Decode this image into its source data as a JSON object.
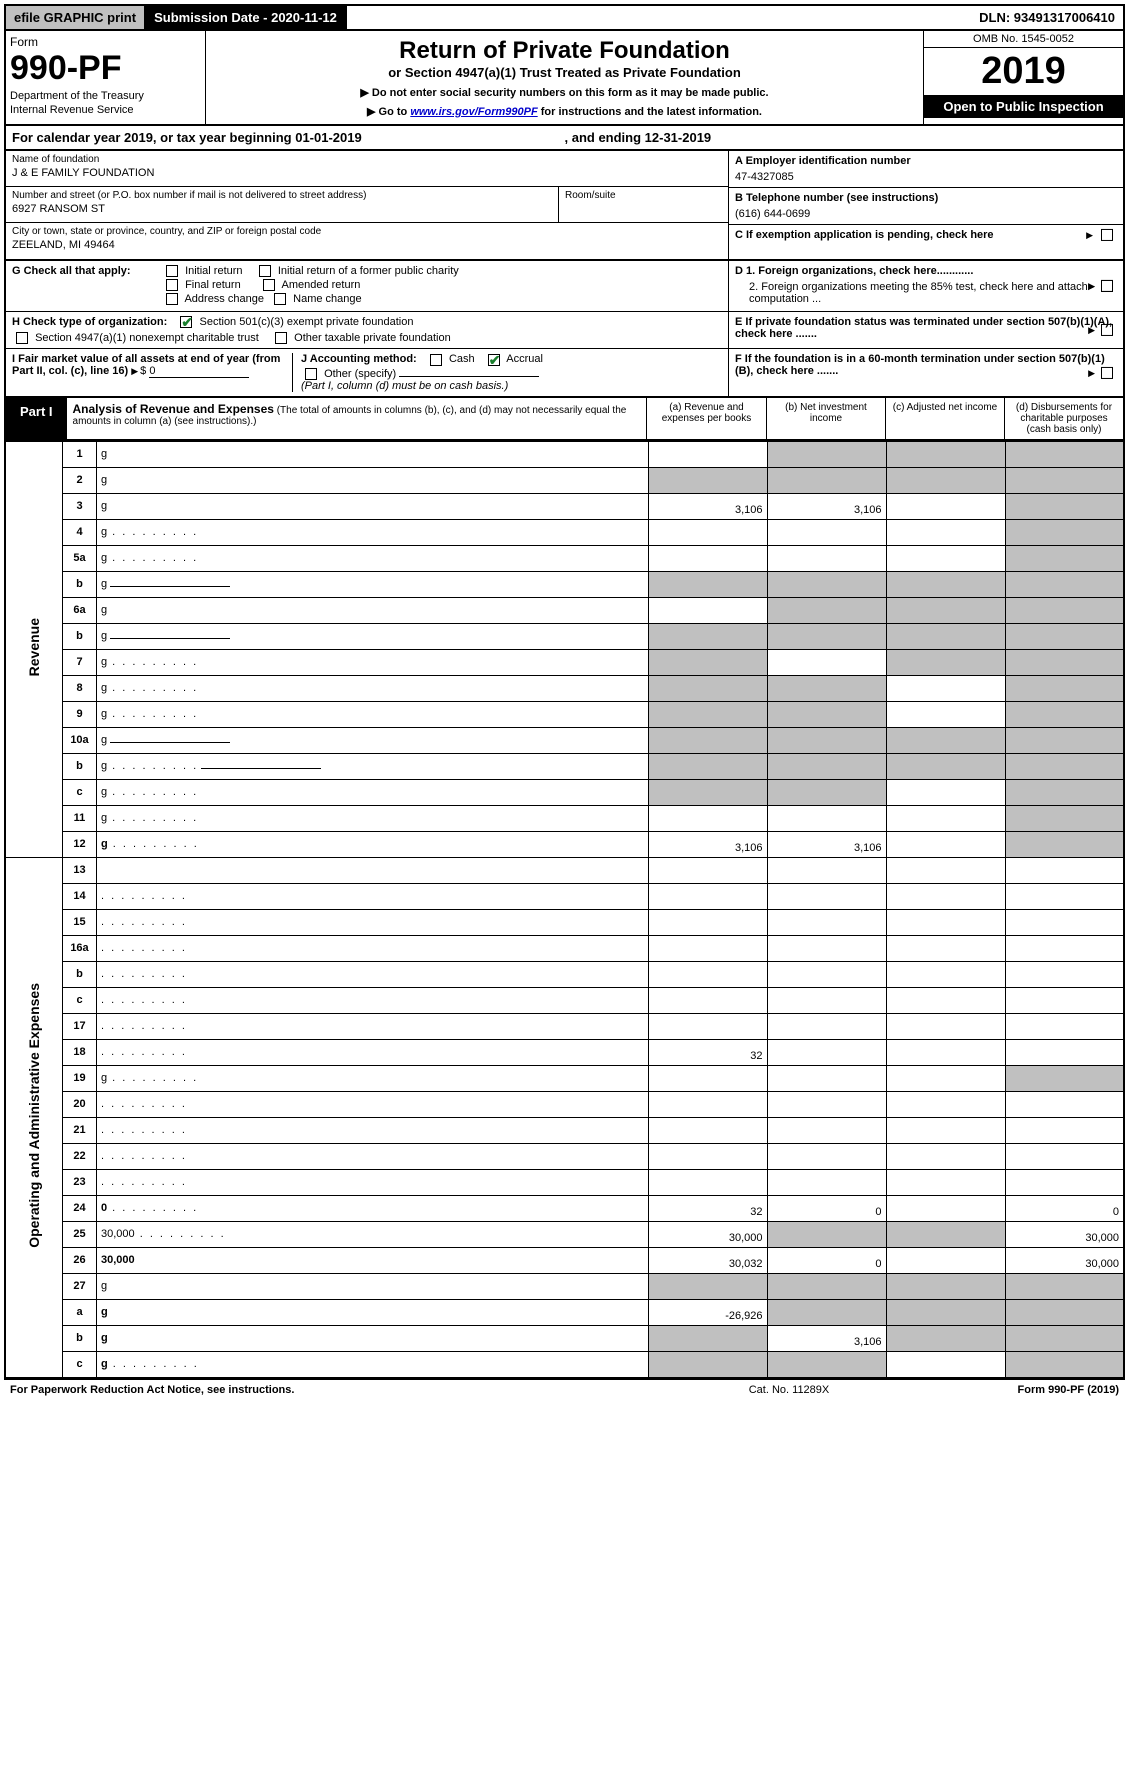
{
  "colors": {
    "accent": "#1a7f2e",
    "grey": "#c0c0c0",
    "link": "#0000cc"
  },
  "topbar": {
    "efile": "efile GRAPHIC print",
    "submission_label": "Submission Date - 2020-11-12",
    "dln": "DLN: 93491317006410"
  },
  "header": {
    "form_word": "Form",
    "form_num": "990-PF",
    "dept1": "Department of the Treasury",
    "dept2": "Internal Revenue Service",
    "title": "Return of Private Foundation",
    "subtitle": "or Section 4947(a)(1) Trust Treated as Private Foundation",
    "note1": "▶ Do not enter social security numbers on this form as it may be made public.",
    "note2_pre": "▶ Go to ",
    "note2_link": "www.irs.gov/Form990PF",
    "note2_post": " for instructions and the latest information.",
    "omb": "OMB No. 1545-0052",
    "year": "2019",
    "open": "Open to Public Inspection"
  },
  "calyr": {
    "text1": "For calendar year 2019, or tax year beginning 01-01-2019",
    "text2": ", and ending 12-31-2019"
  },
  "entity": {
    "name_lbl": "Name of foundation",
    "name_val": "J & E FAMILY FOUNDATION",
    "addr_lbl": "Number and street (or P.O. box number if mail is not delivered to street address)",
    "addr_val": "6927 RANSOM ST",
    "room_lbl": "Room/suite",
    "city_lbl": "City or town, state or province, country, and ZIP or foreign postal code",
    "city_val": "ZEELAND, MI  49464",
    "ein_lbl": "A Employer identification number",
    "ein_val": "47-4327085",
    "tel_lbl": "B Telephone number (see instructions)",
    "tel_val": "(616) 644-0699",
    "c_lbl": "C If exemption application is pending, check here",
    "d1_lbl": "D 1. Foreign organizations, check here............",
    "d2_lbl": "2. Foreign organizations meeting the 85% test, check here and attach computation ...",
    "e_lbl": "E  If private foundation status was terminated under section 507(b)(1)(A), check here .......",
    "f_lbl": "F  If the foundation is in a 60-month termination under section 507(b)(1)(B), check here .......",
    "g_lbl": "G Check all that apply:",
    "g_opts": {
      "initial": "Initial return",
      "initial_former": "Initial return of a former public charity",
      "final": "Final return",
      "amended": "Amended return",
      "address": "Address change",
      "name": "Name change"
    },
    "h_lbl": "H Check type of organization:",
    "h_501": "Section 501(c)(3) exempt private foundation",
    "h_4947": "Section 4947(a)(1) nonexempt charitable trust",
    "h_other": "Other taxable private foundation",
    "i_lbl": "I Fair market value of all assets at end of year (from Part II, col. (c), line 16)",
    "i_val": "0",
    "j_lbl": "J Accounting method:",
    "j_cash": "Cash",
    "j_accrual": "Accrual",
    "j_other": "Other (specify)",
    "j_note": "(Part I, column (d) must be on cash basis.)"
  },
  "part1": {
    "badge": "Part I",
    "title_main": "Analysis of Revenue and Expenses",
    "title_note": " (The total of amounts in columns (b), (c), and (d) may not necessarily equal the amounts in column (a) (see instructions).)",
    "col_a": "(a)   Revenue and expenses per books",
    "col_b": "(b)   Net investment income",
    "col_c": "(c)   Adjusted net income",
    "col_d": "(d)   Disbursements for charitable purposes (cash basis only)",
    "side_rev": "Revenue",
    "side_exp": "Operating and Administrative Expenses",
    "rows": [
      {
        "n": "1",
        "d": "g",
        "a": "",
        "b": "g",
        "c": "g"
      },
      {
        "n": "2",
        "d": "g",
        "a": "g",
        "b": "g",
        "c": "g",
        "dot": false
      },
      {
        "n": "3",
        "d": "g",
        "a": "3,106",
        "b": "3,106",
        "c": ""
      },
      {
        "n": "4",
        "d": "g",
        "a": "",
        "b": "",
        "c": "",
        "dot": true
      },
      {
        "n": "5a",
        "d": "g",
        "a": "",
        "b": "",
        "c": "",
        "dot": true
      },
      {
        "n": "b",
        "d": "g",
        "a": "g",
        "b": "g",
        "c": "g",
        "ul": true
      },
      {
        "n": "6a",
        "d": "g",
        "a": "",
        "b": "g",
        "c": "g"
      },
      {
        "n": "b",
        "d": "g",
        "a": "g",
        "b": "g",
        "c": "g",
        "ul": true
      },
      {
        "n": "7",
        "d": "g",
        "a": "g",
        "b": "",
        "c": "g",
        "dot": true
      },
      {
        "n": "8",
        "d": "g",
        "a": "g",
        "b": "g",
        "c": "",
        "dot": true
      },
      {
        "n": "9",
        "d": "g",
        "a": "g",
        "b": "g",
        "c": "",
        "dot": true
      },
      {
        "n": "10a",
        "d": "g",
        "a": "g",
        "b": "g",
        "c": "g",
        "ul": true
      },
      {
        "n": "b",
        "d": "g",
        "a": "g",
        "b": "g",
        "c": "g",
        "dot": true,
        "ul": true
      },
      {
        "n": "c",
        "d": "g",
        "a": "g",
        "b": "g",
        "c": "",
        "dot": true
      },
      {
        "n": "11",
        "d": "g",
        "a": "",
        "b": "",
        "c": "",
        "dot": true
      },
      {
        "n": "12",
        "d": "g",
        "a": "3,106",
        "b": "3,106",
        "c": "",
        "dot": true,
        "bold": true
      },
      {
        "n": "13",
        "d": "",
        "a": "",
        "b": "",
        "c": ""
      },
      {
        "n": "14",
        "d": "",
        "a": "",
        "b": "",
        "c": "",
        "dot": true
      },
      {
        "n": "15",
        "d": "",
        "a": "",
        "b": "",
        "c": "",
        "dot": true
      },
      {
        "n": "16a",
        "d": "",
        "a": "",
        "b": "",
        "c": "",
        "dot": true
      },
      {
        "n": "b",
        "d": "",
        "a": "",
        "b": "",
        "c": "",
        "dot": true
      },
      {
        "n": "c",
        "d": "",
        "a": "",
        "b": "",
        "c": "",
        "dot": true
      },
      {
        "n": "17",
        "d": "",
        "a": "",
        "b": "",
        "c": "",
        "dot": true
      },
      {
        "n": "18",
        "d": "",
        "a": "32",
        "b": "",
        "c": "",
        "dot": true
      },
      {
        "n": "19",
        "d": "g",
        "a": "",
        "b": "",
        "c": "",
        "dot": true
      },
      {
        "n": "20",
        "d": "",
        "a": "",
        "b": "",
        "c": "",
        "dot": true
      },
      {
        "n": "21",
        "d": "",
        "a": "",
        "b": "",
        "c": "",
        "dot": true
      },
      {
        "n": "22",
        "d": "",
        "a": "",
        "b": "",
        "c": "",
        "dot": true
      },
      {
        "n": "23",
        "d": "",
        "a": "",
        "b": "",
        "c": "",
        "dot": true
      },
      {
        "n": "24",
        "d": "0",
        "a": "32",
        "b": "0",
        "c": "",
        "dot": true,
        "bold": true
      },
      {
        "n": "25",
        "d": "30,000",
        "a": "30,000",
        "b": "g",
        "c": "g",
        "dot": true
      },
      {
        "n": "26",
        "d": "30,000",
        "a": "30,032",
        "b": "0",
        "c": "",
        "bold": true
      },
      {
        "n": "27",
        "d": "g",
        "a": "g",
        "b": "g",
        "c": "g"
      },
      {
        "n": "a",
        "d": "g",
        "a": "-26,926",
        "b": "g",
        "c": "g",
        "bold": true
      },
      {
        "n": "b",
        "d": "g",
        "a": "g",
        "b": "3,106",
        "c": "g",
        "bold": true
      },
      {
        "n": "c",
        "d": "g",
        "a": "g",
        "b": "g",
        "c": "",
        "bold": true,
        "dot": true
      }
    ]
  },
  "footer": {
    "left": "For Paperwork Reduction Act Notice, see instructions.",
    "mid": "Cat. No. 11289X",
    "right": "Form 990-PF (2019)"
  }
}
